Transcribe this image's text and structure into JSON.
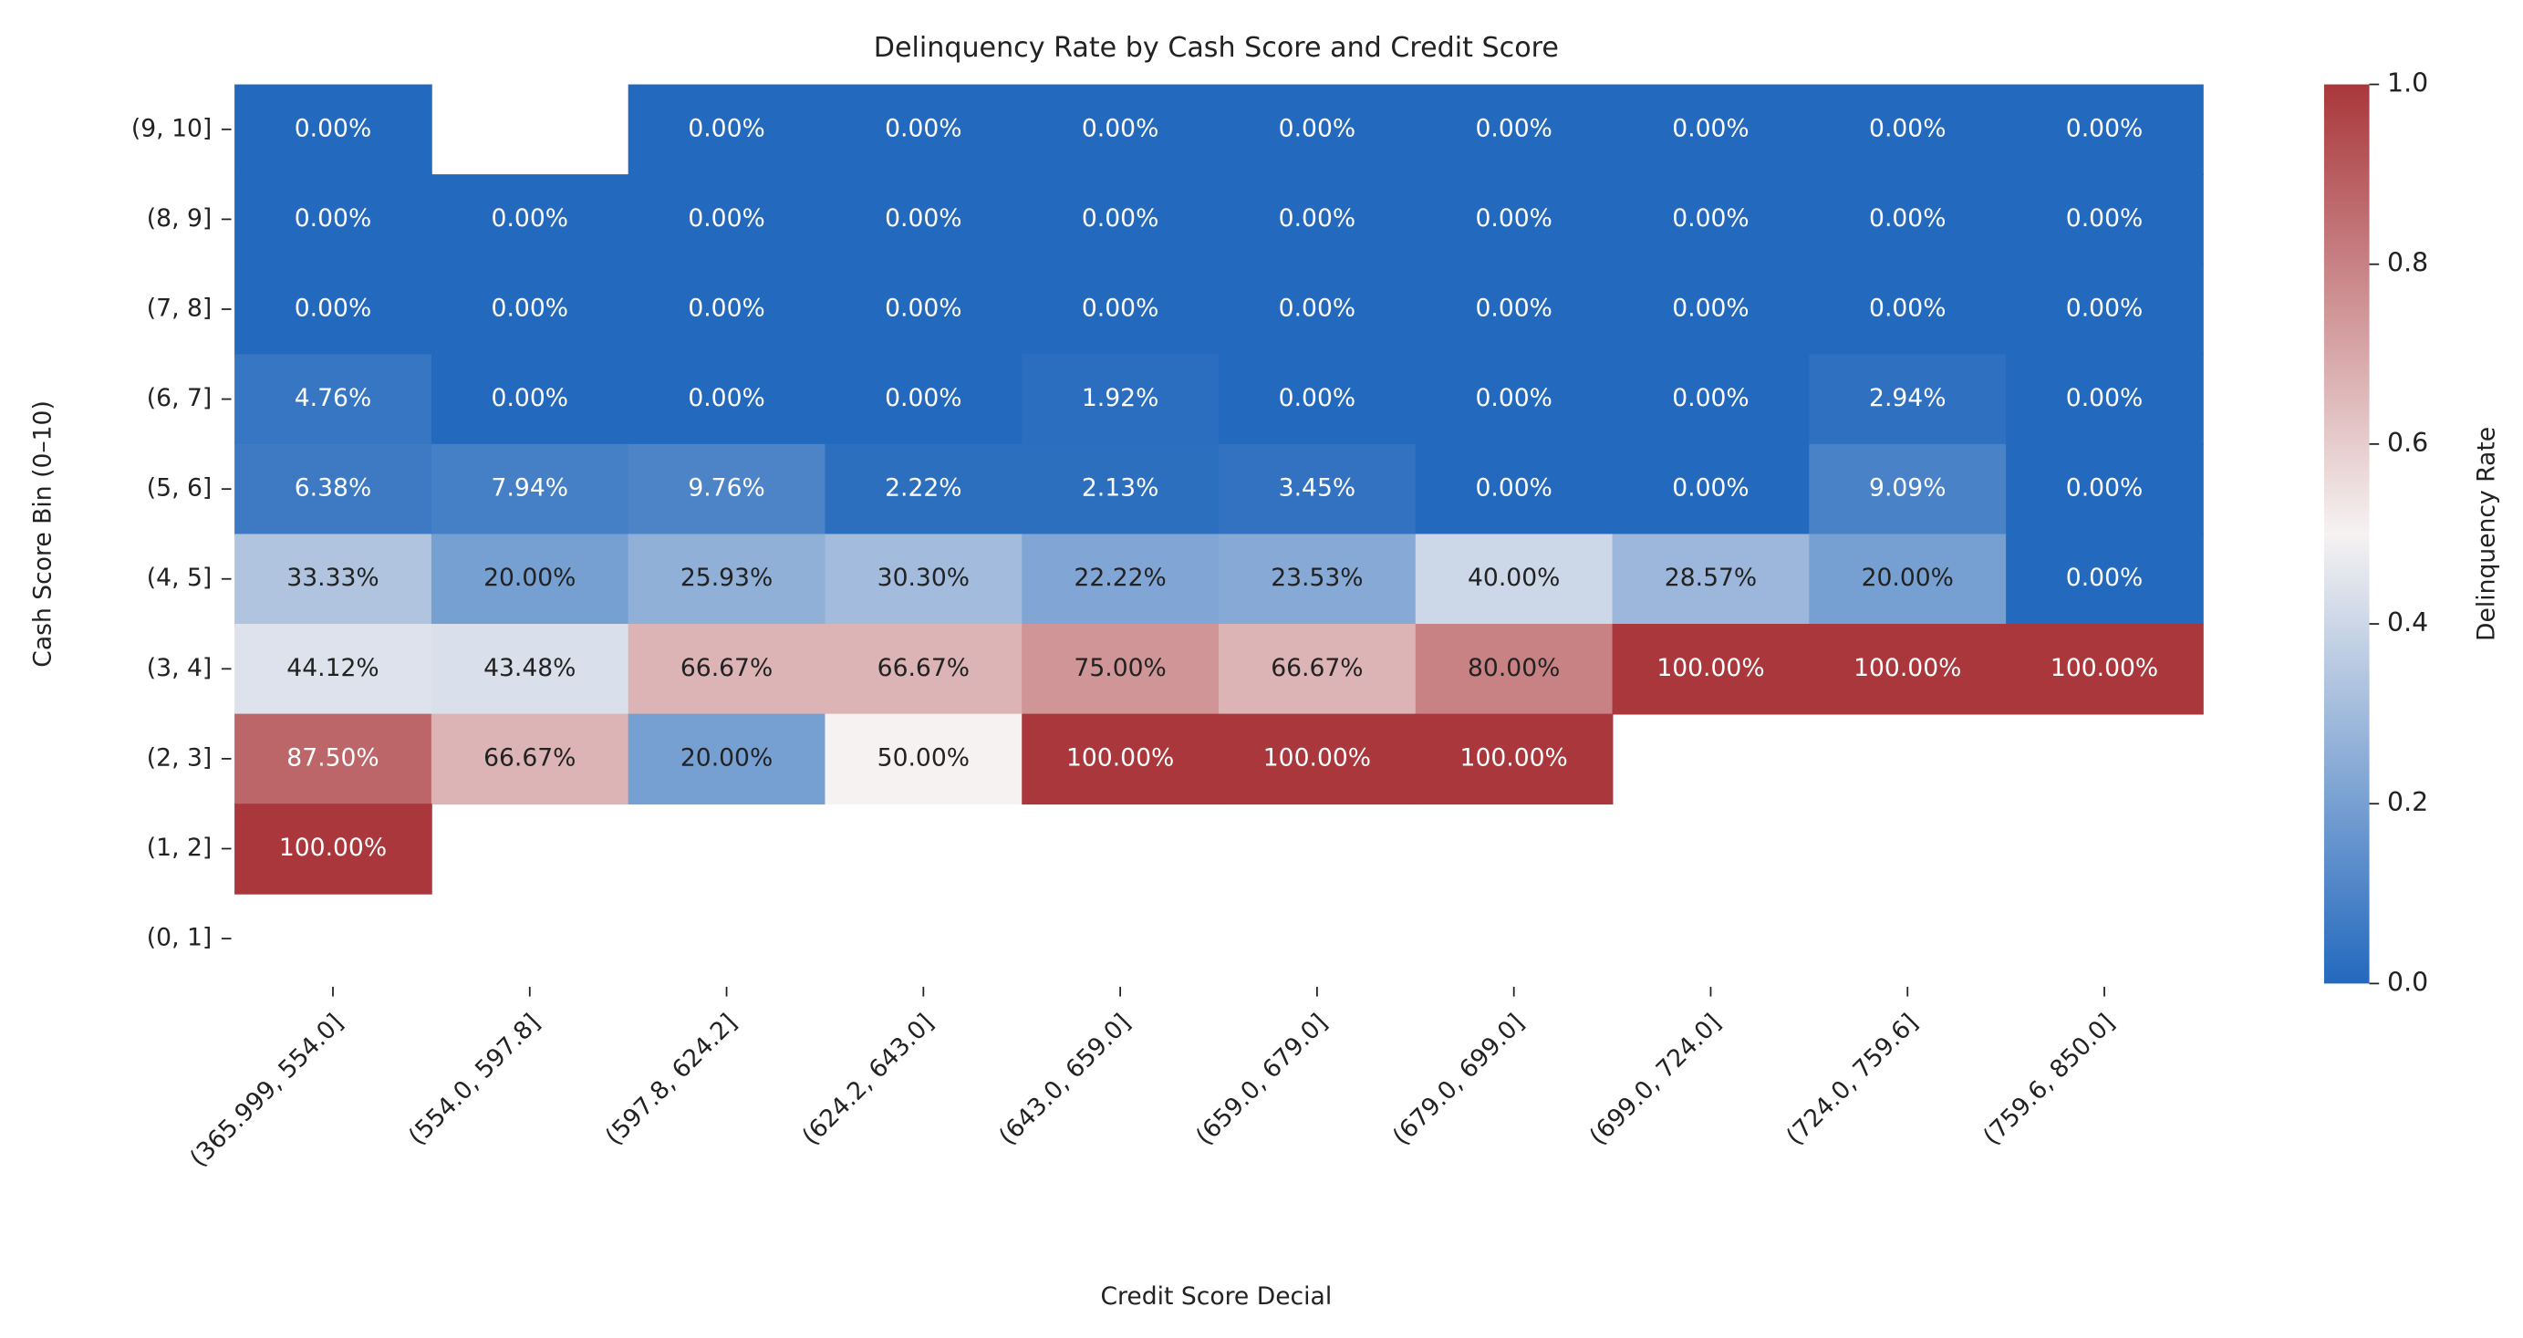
{
  "chart_data": {
    "type": "heatmap",
    "title": "Delinquency Rate by Cash Score and Credit Score",
    "x_label": "Credit Score Decial",
    "y_label": "Cash Score Bin (0–10)",
    "colorbar_label": "Delinquency Rate",
    "categories": [
      "(365.999, 554.0]",
      "(554.0, 597.8]",
      "(597.8, 624.2]",
      "(624.2, 643.0]",
      "(643.0, 659.0]",
      "(659.0, 679.0]",
      "(679.0, 699.0]",
      "(699.0, 724.0]",
      "(724.0, 759.6]",
      "(759.6, 850.0]"
    ],
    "series": [
      {
        "name": "(9, 10]",
        "values": [
          0,
          null,
          0,
          0,
          0,
          0,
          0,
          0,
          0,
          0
        ],
        "value_labels": [
          "0.00%",
          null,
          "0.00%",
          "0.00%",
          "0.00%",
          "0.00%",
          "0.00%",
          "0.00%",
          "0.00%",
          "0.00%"
        ]
      },
      {
        "name": "(8, 9]",
        "values": [
          0,
          0,
          0,
          0,
          0,
          0,
          0,
          0,
          0,
          0
        ],
        "value_labels": [
          "0.00%",
          "0.00%",
          "0.00%",
          "0.00%",
          "0.00%",
          "0.00%",
          "0.00%",
          "0.00%",
          "0.00%",
          "0.00%"
        ]
      },
      {
        "name": "(7, 8]",
        "values": [
          0,
          0,
          0,
          0,
          0,
          0,
          0,
          0,
          0,
          0
        ],
        "value_labels": [
          "0.00%",
          "0.00%",
          "0.00%",
          "0.00%",
          "0.00%",
          "0.00%",
          "0.00%",
          "0.00%",
          "0.00%",
          "0.00%"
        ]
      },
      {
        "name": "(6, 7]",
        "values": [
          0.0476,
          0,
          0,
          0,
          0.0192,
          0,
          0,
          0,
          0.0294,
          0
        ],
        "value_labels": [
          "4.76%",
          "0.00%",
          "0.00%",
          "0.00%",
          "1.92%",
          "0.00%",
          "0.00%",
          "0.00%",
          "2.94%",
          "0.00%"
        ]
      },
      {
        "name": "(5, 6]",
        "values": [
          0.0638,
          0.0794,
          0.0976,
          0.0222,
          0.0213,
          0.0345,
          0,
          0,
          0.0909,
          0
        ],
        "value_labels": [
          "6.38%",
          "7.94%",
          "9.76%",
          "2.22%",
          "2.13%",
          "3.45%",
          "0.00%",
          "0.00%",
          "9.09%",
          "0.00%"
        ]
      },
      {
        "name": "(4, 5]",
        "values": [
          0.3333,
          0.2,
          0.2593,
          0.303,
          0.2222,
          0.2353,
          0.4,
          0.2857,
          0.2,
          0
        ],
        "value_labels": [
          "33.33%",
          "20.00%",
          "25.93%",
          "30.30%",
          "22.22%",
          "23.53%",
          "40.00%",
          "28.57%",
          "20.00%",
          "0.00%"
        ]
      },
      {
        "name": "(3, 4]",
        "values": [
          0.4412,
          0.4348,
          0.6667,
          0.6667,
          0.75,
          0.6667,
          0.8,
          1,
          1,
          1
        ],
        "value_labels": [
          "44.12%",
          "43.48%",
          "66.67%",
          "66.67%",
          "75.00%",
          "66.67%",
          "80.00%",
          "100.00%",
          "100.00%",
          "100.00%"
        ]
      },
      {
        "name": "(2, 3]",
        "values": [
          0.875,
          0.6667,
          0.2,
          0.5,
          1,
          1,
          1,
          null,
          null,
          null
        ],
        "value_labels": [
          "87.50%",
          "66.67%",
          "20.00%",
          "50.00%",
          "100.00%",
          "100.00%",
          "100.00%",
          null,
          null,
          null
        ]
      },
      {
        "name": "(1, 2]",
        "values": [
          1,
          null,
          null,
          null,
          null,
          null,
          null,
          null,
          null,
          null
        ],
        "value_labels": [
          "100.00%",
          null,
          null,
          null,
          null,
          null,
          null,
          null,
          null,
          null
        ]
      },
      {
        "name": "(0, 1]",
        "values": [
          null,
          null,
          null,
          null,
          null,
          null,
          null,
          null,
          null,
          null
        ],
        "value_labels": [
          null,
          null,
          null,
          null,
          null,
          null,
          null,
          null,
          null,
          null
        ]
      }
    ],
    "clim": [
      0,
      1
    ],
    "cticks": [
      {
        "value": 0,
        "label": "0.0"
      },
      0.2,
      0.4,
      0.6,
      0.8,
      {
        "value": 1,
        "label": "1.0"
      }
    ],
    "colormap": [
      "#2369bd",
      "#f6f2f2",
      "#a9373b"
    ]
  }
}
